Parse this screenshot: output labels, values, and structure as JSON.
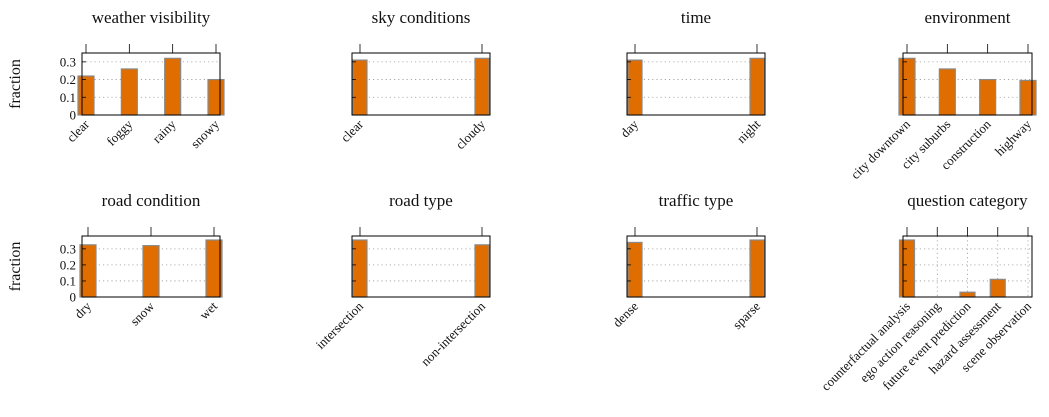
{
  "figure": {
    "bar_color": "#e06d00",
    "bar_edge_color": "#8a8a8a",
    "ylabel": "fraction"
  },
  "chart_data": [
    {
      "type": "bar",
      "title": "weather visibility",
      "categories": [
        "clear",
        "foggy",
        "rainy",
        "snowy"
      ],
      "values": [
        0.22,
        0.26,
        0.32,
        0.2
      ],
      "ylabel": "fraction",
      "yticks": [
        "0",
        "0.1",
        "0.2",
        "0.3"
      ],
      "ylim": [
        0,
        0.35
      ],
      "grid": true
    },
    {
      "type": "bar",
      "title": "sky conditions",
      "categories": [
        "clear",
        "cloudy"
      ],
      "values": [
        0.31,
        0.32
      ],
      "ylim": [
        0,
        0.35
      ],
      "grid": true
    },
    {
      "type": "bar",
      "title": "time",
      "categories": [
        "day",
        "night"
      ],
      "values": [
        0.31,
        0.32
      ],
      "ylim": [
        0,
        0.35
      ],
      "grid": true
    },
    {
      "type": "bar",
      "title": "environment",
      "categories": [
        "city downtown",
        "city suburbs",
        "construction",
        "highway"
      ],
      "values": [
        0.32,
        0.26,
        0.2,
        0.195
      ],
      "ylim": [
        0,
        0.35
      ],
      "grid": true
    },
    {
      "type": "bar",
      "title": "road condition",
      "categories": [
        "dry",
        "snow",
        "wet"
      ],
      "values": [
        0.325,
        0.32,
        0.355
      ],
      "ylabel": "fraction",
      "yticks": [
        "0",
        "0.1",
        "0.2",
        "0.3"
      ],
      "ylim": [
        0,
        0.38
      ],
      "grid": true
    },
    {
      "type": "bar",
      "title": "road type",
      "categories": [
        "intersection",
        "non-intersection"
      ],
      "values": [
        0.355,
        0.325
      ],
      "ylim": [
        0,
        0.38
      ],
      "grid": true
    },
    {
      "type": "bar",
      "title": "traffic type",
      "categories": [
        "dense",
        "sparse"
      ],
      "values": [
        0.34,
        0.355
      ],
      "ylim": [
        0,
        0.38
      ],
      "grid": true
    },
    {
      "type": "bar",
      "title": "question category",
      "categories": [
        "counterfactual analysis",
        "ego action reasoning",
        "future event prediction",
        "hazard assessment",
        "scene observation"
      ],
      "values": [
        0.355,
        0.0,
        0.03,
        0.11,
        0.0
      ],
      "ylim": [
        0,
        0.38
      ],
      "grid": true
    }
  ]
}
